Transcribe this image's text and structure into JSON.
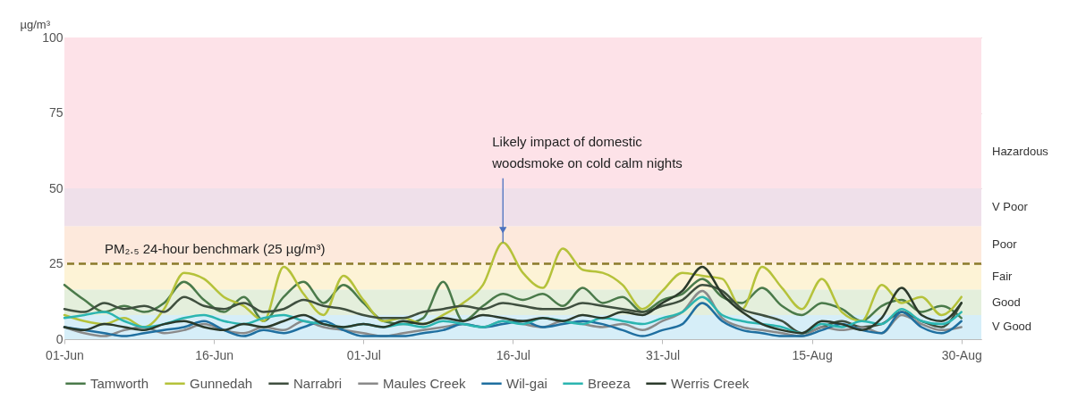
{
  "chart_data": {
    "type": "line",
    "ylabel": "µg/m³",
    "x": [
      "--06-01",
      "--06-03",
      "--06-05",
      "--06-07",
      "--06-09",
      "--06-11",
      "--06-13",
      "--06-15",
      "--06-17",
      "--06-19",
      "--06-21",
      "--06-23",
      "--06-25",
      "--06-27",
      "--06-29",
      "--07-01",
      "--07-03",
      "--07-05",
      "--07-07",
      "--07-09",
      "--07-11",
      "--07-13",
      "--07-15",
      "--07-17",
      "--07-19",
      "--07-21",
      "--07-23",
      "--07-25",
      "--07-27",
      "--07-29",
      "--07-31",
      "--08-02",
      "--08-04",
      "--08-06",
      "--08-08",
      "--08-10",
      "--08-12",
      "--08-14",
      "--08-16",
      "--08-18",
      "--08-20",
      "--08-22",
      "--08-24",
      "--08-26",
      "--08-28",
      "--08-30"
    ],
    "series": [
      {
        "name": "Tamworth",
        "color": "#4a7a4a",
        "values": [
          18,
          13,
          9,
          11,
          9,
          12,
          19,
          13,
          9,
          14,
          6,
          14,
          19,
          12,
          18,
          12,
          6,
          5,
          7,
          19,
          6,
          11,
          15,
          13,
          15,
          11,
          17,
          12,
          14,
          9,
          13,
          15,
          20,
          14,
          12,
          17,
          11,
          8,
          12,
          10,
          6,
          11,
          13,
          9,
          11,
          7
        ]
      },
      {
        "name": "Gunnedah",
        "color": "#b5c23a",
        "values": [
          8,
          6,
          5,
          7,
          4,
          10,
          22,
          20,
          14,
          11,
          6,
          24,
          15,
          8,
          21,
          13,
          6,
          7,
          5,
          8,
          12,
          18,
          32,
          22,
          17,
          30,
          23,
          22,
          18,
          10,
          16,
          22,
          21,
          20,
          10,
          24,
          17,
          10,
          20,
          9,
          6,
          18,
          12,
          14,
          8,
          14
        ]
      },
      {
        "name": "Narrabri",
        "color": "#3f4f3f",
        "values": [
          10,
          9,
          12,
          10,
          11,
          9,
          14,
          11,
          10,
          12,
          9,
          10,
          13,
          11,
          10,
          8,
          7,
          7,
          9,
          10,
          11,
          10,
          12,
          11,
          10,
          10,
          12,
          11,
          10,
          9,
          11,
          13,
          18,
          16,
          10,
          8,
          6,
          2,
          4,
          6,
          4,
          5,
          9,
          6,
          4,
          12
        ]
      },
      {
        "name": "Maules Creek",
        "color": "#8a8a8a",
        "values": [
          4,
          2,
          1,
          3,
          4,
          2,
          3,
          5,
          3,
          2,
          4,
          3,
          6,
          4,
          3,
          2,
          1,
          2,
          3,
          4,
          5,
          4,
          6,
          5,
          4,
          6,
          5,
          4,
          5,
          3,
          6,
          9,
          16,
          7,
          4,
          3,
          2,
          1,
          4,
          3,
          4,
          2,
          8,
          5,
          3,
          4
        ]
      },
      {
        "name": "Wil-gai",
        "color": "#1f6fa0",
        "values": [
          4,
          3,
          2,
          1,
          2,
          3,
          4,
          6,
          3,
          1,
          3,
          2,
          4,
          6,
          3,
          1,
          1,
          1,
          2,
          3,
          5,
          4,
          5,
          6,
          4,
          5,
          6,
          5,
          3,
          1,
          3,
          5,
          12,
          6,
          3,
          2,
          1,
          1,
          3,
          5,
          3,
          2,
          9,
          4,
          2,
          6
        ]
      },
      {
        "name": "Breeza",
        "color": "#2bb5b0",
        "values": [
          7,
          8,
          9,
          6,
          4,
          5,
          7,
          8,
          6,
          5,
          7,
          8,
          6,
          5,
          4,
          5,
          4,
          5,
          4,
          6,
          5,
          4,
          6,
          5,
          7,
          6,
          5,
          7,
          6,
          5,
          7,
          9,
          14,
          8,
          6,
          5,
          4,
          2,
          5,
          4,
          6,
          5,
          10,
          6,
          5,
          9
        ]
      },
      {
        "name": "Werris Creek",
        "color": "#2b3a2b",
        "values": [
          4,
          3,
          5,
          4,
          3,
          5,
          6,
          4,
          3,
          5,
          4,
          6,
          8,
          5,
          4,
          5,
          4,
          6,
          5,
          7,
          6,
          8,
          7,
          6,
          7,
          6,
          8,
          7,
          9,
          8,
          12,
          16,
          24,
          15,
          9,
          5,
          3,
          2,
          6,
          5,
          3,
          7,
          17,
          8,
          6,
          12
        ]
      }
    ],
    "xlim": [
      "--06-01",
      "--09-01"
    ],
    "xticks": [
      {
        "value": "--06-01",
        "label": "01-Jun"
      },
      {
        "value": "--06-16",
        "label": "16-Jun"
      },
      {
        "value": "--07-01",
        "label": "01-Jul"
      },
      {
        "value": "--07-16",
        "label": "16-Jul"
      },
      {
        "value": "--07-31",
        "label": "31-Jul"
      },
      {
        "value": "--08-15",
        "label": "15-Aug"
      },
      {
        "value": "--08-30",
        "label": "30-Aug"
      }
    ],
    "ylim": [
      0,
      100
    ],
    "yticks": [
      0,
      25,
      50,
      75,
      100
    ],
    "grid": "y",
    "legend": "bottom",
    "bands": [
      {
        "axis": "y",
        "from": 0,
        "to": 8,
        "label": "V Good",
        "color": "#d6eef8"
      },
      {
        "axis": "y",
        "from": 8,
        "to": 16.5,
        "label": "Good",
        "color": "#e4efdc"
      },
      {
        "axis": "y",
        "from": 16.5,
        "to": 25,
        "label": "Fair",
        "color": "#fdf3d6"
      },
      {
        "axis": "y",
        "from": 25,
        "to": 37.5,
        "label": "Poor",
        "color": "#fde9dc"
      },
      {
        "axis": "y",
        "from": 37.5,
        "to": 50,
        "label": "V Poor",
        "color": "#efe0ea"
      },
      {
        "axis": "y",
        "from": 50,
        "to": 100,
        "label": "Hazardous",
        "color": "#fde2e8"
      }
    ],
    "ref_lines": [
      {
        "axis": "y",
        "value": 25,
        "label": "PM₂.₅ 24-hour benchmark (25 µg/m³)",
        "color": "#8a7a2a",
        "line_style": "dashed"
      }
    ],
    "annotations": [
      {
        "text": "Likely impact of domestic woodsmoke on cold calm nights",
        "x": "--07-15",
        "y": 32
      }
    ]
  }
}
